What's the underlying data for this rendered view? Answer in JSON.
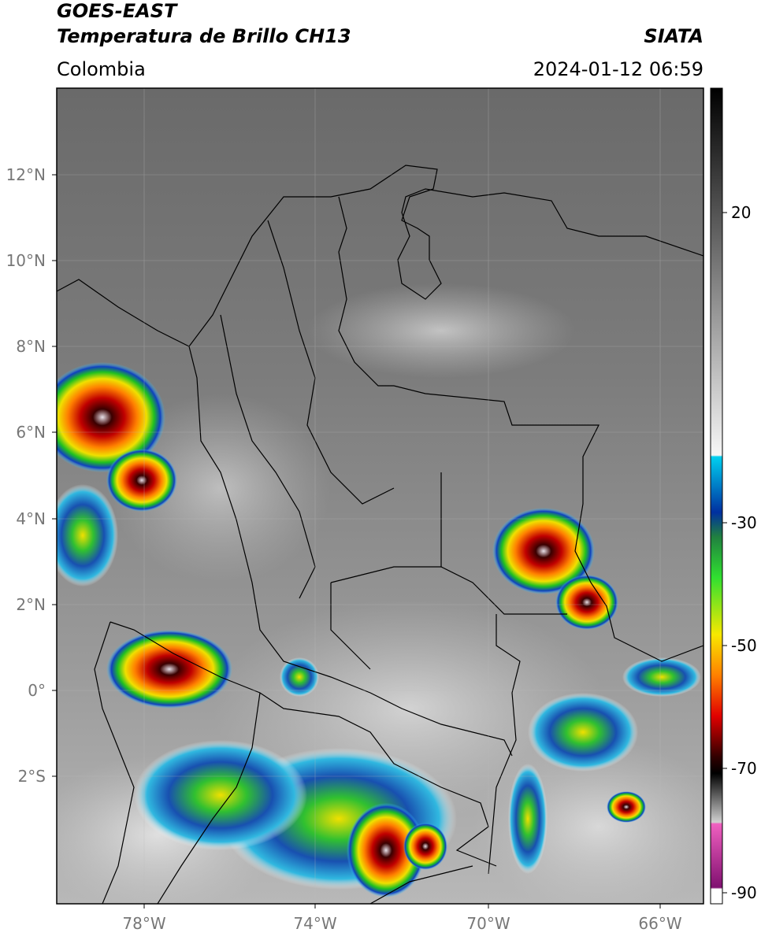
{
  "header": {
    "title": "GOES-EAST",
    "subtitle": "Temperatura de Brillo CH13",
    "region": "Colombia",
    "source": "SIATA",
    "datetime": "2024-01-12 06:59"
  },
  "map": {
    "lat_labels": [
      "12°N",
      "10°N",
      "8°N",
      "6°N",
      "4°N",
      "2°N",
      "0°",
      "2°S"
    ],
    "lon_labels": [
      "78°W",
      "74°W",
      "70°W",
      "66°W"
    ]
  },
  "colorbar": {
    "labels": [
      "20",
      "-30",
      "-50",
      "-70",
      "-90"
    ]
  }
}
